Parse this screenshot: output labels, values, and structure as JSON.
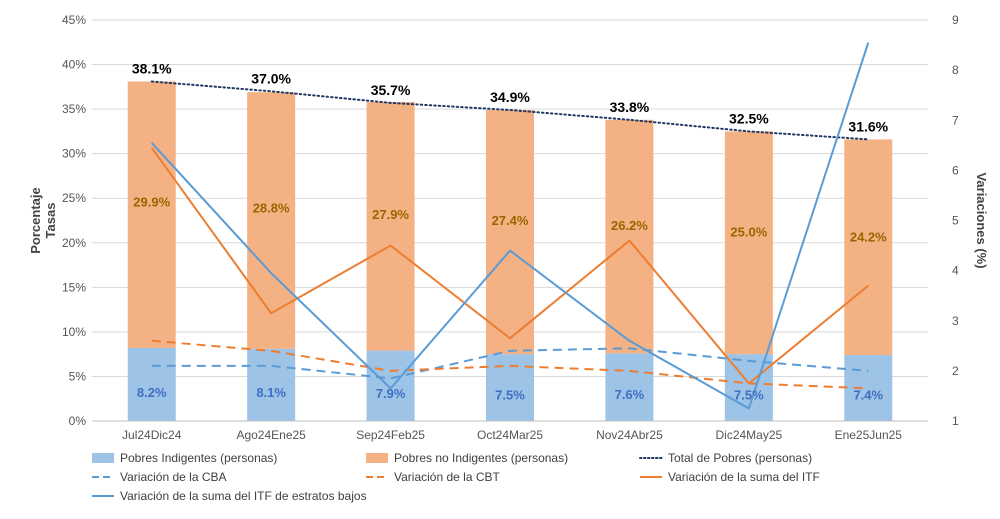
{
  "chart_data": {
    "type": "bar",
    "categories": [
      "Jul24Dic24",
      "Ago24Ene25",
      "Sep24Feb25",
      "Oct24Mar25",
      "Nov24Abr25",
      "Dic24May25",
      "Ene25Jun25"
    ],
    "ylabel": "Porcentaje Tasas",
    "ylabel_lines": [
      "Porcentaje",
      "Tasas"
    ],
    "y2label": "Variaciones (%)",
    "ylim": [
      0,
      45
    ],
    "y2lim": [
      1,
      9
    ],
    "yticks": [
      "0%",
      "5%",
      "10%",
      "15%",
      "20%",
      "25%",
      "30%",
      "35%",
      "40%",
      "45%"
    ],
    "y2ticks": [
      "1",
      "2",
      "3",
      "4",
      "5",
      "6",
      "7",
      "8",
      "9"
    ],
    "stacked_series": [
      {
        "name": "Pobres Indigentes (personas)",
        "values": [
          8.2,
          8.1,
          7.9,
          7.5,
          7.6,
          7.5,
          7.4
        ],
        "labels": [
          "8.2%",
          "8.1%",
          "7.9%",
          "7.5%",
          "7.6%",
          "7.5%",
          "7.4%"
        ],
        "color": "#9DC3E6"
      },
      {
        "name": "Pobres no Indigentes (personas)",
        "values": [
          29.9,
          28.8,
          27.9,
          27.4,
          26.2,
          25.0,
          24.2
        ],
        "labels": [
          "29.9%",
          "28.8%",
          "27.9%",
          "27.4%",
          "26.2%",
          "25.0%",
          "24.2%"
        ],
        "color": "#F4B183"
      }
    ],
    "total_series": {
      "name": "Total de Pobres (personas)",
      "values": [
        38.1,
        37.0,
        35.7,
        34.9,
        33.8,
        32.5,
        31.6
      ],
      "labels": [
        "38.1%",
        "37.0%",
        "35.7%",
        "34.9%",
        "33.8%",
        "32.5%",
        "31.6%"
      ],
      "color": "#1F3864"
    },
    "variation_series": [
      {
        "name": "Variación de la CBA",
        "values": [
          2.1,
          2.1,
          1.85,
          2.4,
          2.45,
          2.2,
          2.0
        ],
        "color": "#5B9BD5",
        "style": "dashed"
      },
      {
        "name": "Variación de la CBT",
        "values": [
          2.6,
          2.4,
          2.0,
          2.1,
          2.0,
          1.75,
          1.65
        ],
        "color": "#ED7D31",
        "style": "dashed"
      },
      {
        "name": "Variación de la suma del ITF",
        "values": [
          6.45,
          3.15,
          4.5,
          2.65,
          4.6,
          1.75,
          3.7
        ],
        "color": "#ED7D31",
        "style": "solid"
      },
      {
        "name": "Variación de la suma del ITF de estratos bajos",
        "values": [
          6.55,
          3.95,
          1.65,
          4.4,
          2.6,
          1.25,
          8.55
        ],
        "color": "#5B9BD5",
        "style": "solid"
      }
    ],
    "legend_position": "bottom"
  }
}
